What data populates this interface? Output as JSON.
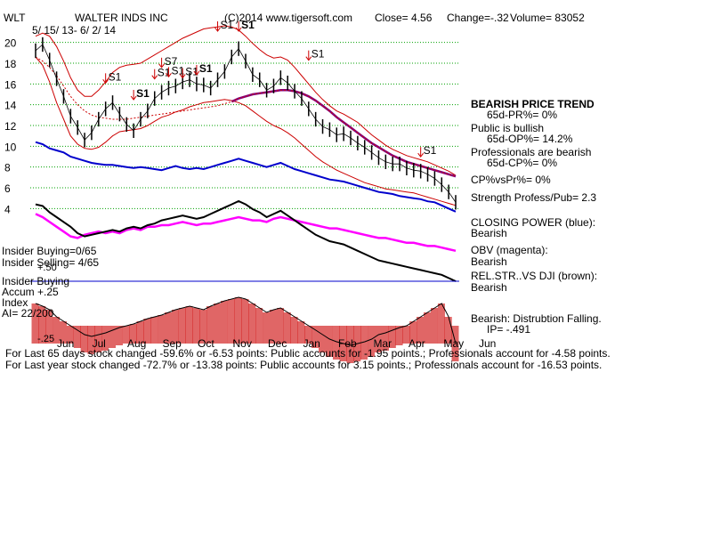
{
  "header": {
    "ticker": "WLT",
    "company": "WALTER INDS INC",
    "copyright": "(C)2014 www.tigersoft.com",
    "close": "Close=  4.56",
    "change": "Change=-.32",
    "volume": "Volume= 83052",
    "date_range": "5/ 15/ 13- 6/ 2/ 14"
  },
  "chart_data": {
    "type": "line",
    "x": [
      "Jun",
      "Jul",
      "Aug",
      "Sep",
      "Oct",
      "Nov",
      "Dec",
      "Jan",
      "Feb",
      "Mar",
      "Apr",
      "May",
      "Jun"
    ],
    "y_ticks": [
      "20",
      "18",
      "16",
      "14",
      "12",
      "10",
      "8",
      "6",
      "4"
    ],
    "ylim": [
      3,
      21
    ],
    "price": [
      19.2,
      19.8,
      18.3,
      16.5,
      14.8,
      12.9,
      11.8,
      10.6,
      11.3,
      12.6,
      13.6,
      14.2,
      13.1,
      12.1,
      11.5,
      12.6,
      13.4,
      14.6,
      15.2,
      15.6,
      15.8,
      16.2,
      16.4,
      16.0,
      15.9,
      15.6,
      16.4,
      17.2,
      18.6,
      19.4,
      18.2,
      16.9,
      16.4,
      15.4,
      15.8,
      16.6,
      16.1,
      15.3,
      14.6,
      13.6,
      12.6,
      11.9,
      11.6,
      11.1,
      11.2,
      10.8,
      10.3,
      9.9,
      9.4,
      8.9,
      8.5,
      8.3,
      8.3,
      7.9,
      7.7,
      7.6,
      7.3,
      6.9,
      6.3,
      5.6,
      4.6
    ],
    "upper_band": [
      20.6,
      20.9,
      20.6,
      19.6,
      18.2,
      16.6,
      15.4,
      14.8,
      14.8,
      15.4,
      16.2,
      17.1,
      17.6,
      17.8,
      17.9,
      18.0,
      18.4,
      18.8,
      19.2,
      19.6,
      20.0,
      20.4,
      20.7,
      21.0,
      21.3,
      21.4,
      21.5,
      21.6,
      21.5,
      21.2,
      20.6,
      19.9,
      19.3,
      18.8,
      18.5,
      18.6,
      18.3,
      17.6,
      16.8,
      16.0,
      15.2,
      14.5,
      13.9,
      13.4,
      13.1,
      12.7,
      12.3,
      11.7,
      11.1,
      10.6,
      10.1,
      9.7,
      9.4,
      9.1,
      8.9,
      8.7,
      8.5,
      8.2,
      7.9,
      7.6,
      7.2
    ],
    "lower_band": [
      18.6,
      17.8,
      16.2,
      14.2,
      12.6,
      11.0,
      10.2,
      9.8,
      9.7,
      9.9,
      10.4,
      11.0,
      11.4,
      11.5,
      11.6,
      11.7,
      12.0,
      12.4,
      12.8,
      13.0,
      13.3,
      13.5,
      13.8,
      14.0,
      14.2,
      14.3,
      14.4,
      14.5,
      14.4,
      14.2,
      13.9,
      13.4,
      12.9,
      12.4,
      12.0,
      11.7,
      11.3,
      10.8,
      10.2,
      9.6,
      9.0,
      8.5,
      8.1,
      7.7,
      7.4,
      7.1,
      6.8,
      6.5,
      6.3,
      6.1,
      5.9,
      5.8,
      5.7,
      5.6,
      5.5,
      5.3,
      5.1,
      4.9,
      4.7,
      4.5,
      4.3
    ],
    "ma_red": [
      null,
      null,
      null,
      null,
      null,
      null,
      null,
      null,
      null,
      null,
      null,
      null,
      null,
      null,
      null,
      null,
      null,
      null,
      null,
      null,
      null,
      null,
      null,
      null,
      null,
      null,
      null,
      null,
      null,
      null,
      null,
      null,
      null,
      null,
      null,
      null,
      null,
      null,
      null,
      null,
      null,
      null,
      null,
      null,
      null,
      null,
      null,
      null,
      null,
      null,
      null,
      null,
      null,
      null,
      null,
      null,
      null,
      null,
      null,
      null,
      null
    ],
    "ma_65": [
      18.6,
      18.2,
      17.6,
      16.8,
      15.8,
      14.8,
      14.0,
      13.4,
      13.0,
      12.8,
      12.7,
      12.6,
      12.6,
      12.6,
      12.7,
      12.8,
      12.9,
      13.0,
      13.1,
      13.2,
      13.3,
      13.4,
      13.5,
      13.6,
      13.7,
      13.8,
      13.9,
      14.1,
      14.3,
      14.6,
      14.8,
      15.0,
      15.1,
      15.2,
      15.3,
      15.4,
      15.4,
      15.3,
      15.1,
      14.8,
      14.4,
      13.9,
      13.4,
      12.8,
      12.3,
      11.8,
      11.3,
      10.8,
      10.3,
      9.9,
      9.5,
      9.1,
      8.8,
      8.5,
      8.3,
      8.1,
      7.9,
      7.7,
      7.5,
      7.3,
      7.1
    ],
    "ma_purple_start": 28,
    "closing_power": [
      10.4,
      10.2,
      9.8,
      9.6,
      9.4,
      9.0,
      8.8,
      8.6,
      8.4,
      8.3,
      8.2,
      8.2,
      8.1,
      8.0,
      7.9,
      8.0,
      7.9,
      7.8,
      7.7,
      7.9,
      8.1,
      7.9,
      7.8,
      7.9,
      7.8,
      8.0,
      8.2,
      8.4,
      8.6,
      8.8,
      8.6,
      8.4,
      8.2,
      8.0,
      8.2,
      8.4,
      8.1,
      7.8,
      7.6,
      7.4,
      7.2,
      7.0,
      6.8,
      6.7,
      6.6,
      6.4,
      6.2,
      6.0,
      5.8,
      5.6,
      5.5,
      5.4,
      5.2,
      5.1,
      5.0,
      4.9,
      4.7,
      4.6,
      4.3,
      4.0,
      3.7
    ],
    "obv": [
      4.2,
      4.0,
      3.7,
      3.4,
      3.1,
      2.8,
      2.7,
      2.9,
      3.0,
      3.1,
      3.0,
      3.1,
      3.0,
      3.2,
      3.3,
      3.2,
      3.4,
      3.4,
      3.5,
      3.5,
      3.6,
      3.7,
      3.6,
      3.5,
      3.6,
      3.6,
      3.7,
      3.8,
      3.9,
      4.0,
      3.9,
      3.8,
      3.8,
      3.7,
      3.9,
      4.0,
      3.9,
      3.8,
      3.7,
      3.6,
      3.5,
      3.4,
      3.3,
      3.3,
      3.2,
      3.1,
      3.0,
      2.9,
      2.8,
      2.7,
      2.7,
      2.6,
      2.5,
      2.4,
      2.4,
      2.3,
      2.2,
      2.2,
      2.1,
      2.0,
      1.9
    ],
    "rel_str": [
      4.8,
      4.7,
      4.3,
      4.0,
      3.7,
      3.4,
      3.0,
      2.8,
      2.9,
      3.0,
      3.1,
      3.2,
      3.1,
      3.3,
      3.4,
      3.3,
      3.5,
      3.6,
      3.8,
      3.9,
      4.0,
      4.1,
      4.0,
      3.9,
      4.0,
      4.2,
      4.4,
      4.6,
      4.8,
      5.0,
      4.8,
      4.5,
      4.3,
      4.0,
      4.2,
      4.4,
      4.1,
      3.8,
      3.5,
      3.2,
      2.9,
      2.7,
      2.5,
      2.4,
      2.3,
      2.1,
      1.9,
      1.7,
      1.5,
      1.3,
      1.2,
      1.1,
      1.0,
      0.9,
      0.8,
      0.7,
      0.6,
      0.5,
      0.4,
      0.2,
      0.0
    ],
    "accum_index": [
      0.25,
      0.22,
      0.18,
      0.1,
      0.05,
      0.0,
      -0.05,
      -0.1,
      -0.12,
      -0.1,
      -0.08,
      -0.05,
      -0.02,
      0.0,
      0.02,
      0.05,
      0.08,
      0.1,
      0.12,
      0.15,
      0.18,
      0.2,
      0.22,
      0.2,
      0.18,
      0.22,
      0.25,
      0.28,
      0.3,
      0.32,
      0.3,
      0.25,
      0.2,
      0.15,
      0.18,
      0.2,
      0.15,
      0.1,
      0.05,
      0.0,
      -0.05,
      -0.1,
      -0.15,
      -0.18,
      -0.2,
      -0.22,
      -0.2,
      -0.18,
      -0.15,
      -0.1,
      -0.08,
      -0.05,
      -0.02,
      0.0,
      0.05,
      0.1,
      0.15,
      0.2,
      0.25,
      0.1,
      -0.2
    ],
    "signals": [
      {
        "label": "S1",
        "idx": 10,
        "price": 16.0,
        "bold": false
      },
      {
        "label": "S1",
        "idx": 14,
        "price": 14.4,
        "bold": true
      },
      {
        "label": "S7",
        "idx": 18,
        "price": 17.5,
        "bold": false
      },
      {
        "label": "S1",
        "idx": 17,
        "price": 16.4,
        "bold": false
      },
      {
        "label": "S1",
        "idx": 19,
        "price": 16.6,
        "bold": false
      },
      {
        "label": "S1",
        "idx": 21,
        "price": 16.5,
        "bold": false
      },
      {
        "label": "S1",
        "idx": 23,
        "price": 16.8,
        "bold": true
      },
      {
        "label": "S1",
        "idx": 26,
        "price": 21.0,
        "bold": false
      },
      {
        "label": "S1",
        "idx": 29,
        "price": 21.0,
        "bold": true
      },
      {
        "label": "S1",
        "idx": 39,
        "price": 18.2,
        "bold": false
      },
      {
        "label": "S1",
        "idx": 55,
        "price": 8.9,
        "bold": false
      }
    ]
  },
  "right_panel": {
    "trend": "BEARISH PRICE TREND",
    "pr": "65d-PR%= 0%",
    "public": "Public is bullish",
    "op": "65d-OP%= 14.2%",
    "professionals": "Professionals are bearish",
    "cp": "65d-CP%= 0%",
    "cpvspr": "CP%vsPr%=  0%",
    "strength": "Strength Profess/Pub= 2.3",
    "closing_power": "CLOSING POWER (blue):",
    "closing_power_val": "Bearish",
    "obv": "OBV (magenta):",
    "obv_val": "Bearish",
    "relstr": "REL.STR..VS DJI (brown):",
    "relstr_val": "Bearish",
    "distribution": "Bearish: Distrubtion Falling.",
    "ip": "IP= -.491"
  },
  "left_panel": {
    "insider_buying": "Insider Buying=0/65",
    "insider_selling": "Insider Selling= 4/65",
    "plus50": "+.50",
    "insider_buying2": "Insider Buying",
    "accum": "Accum  +.25",
    "index": "Index",
    "ai": "AI= 22/200",
    "minus25": "-.25"
  },
  "footer": {
    "line1": "For Last 65 days stock changed -59.6% or -6.53 points:  Public accounts for -1.95 points.;  Professionals account for -4.58 points.",
    "line2": "For Last year stock changed -72.7% or -13.38 points:  Public accounts for  3.15 points.;  Professionals account for -16.53 points."
  },
  "colors": {
    "price": "#000000",
    "bands": "#cc0000",
    "ma65": "#800080",
    "closing_power": "#0000cc",
    "obv": "#ff00ff",
    "rel_str": "#000000",
    "accum_bars": "#cc0000",
    "grid": "#00a000",
    "insider_line": "#0000cc"
  }
}
